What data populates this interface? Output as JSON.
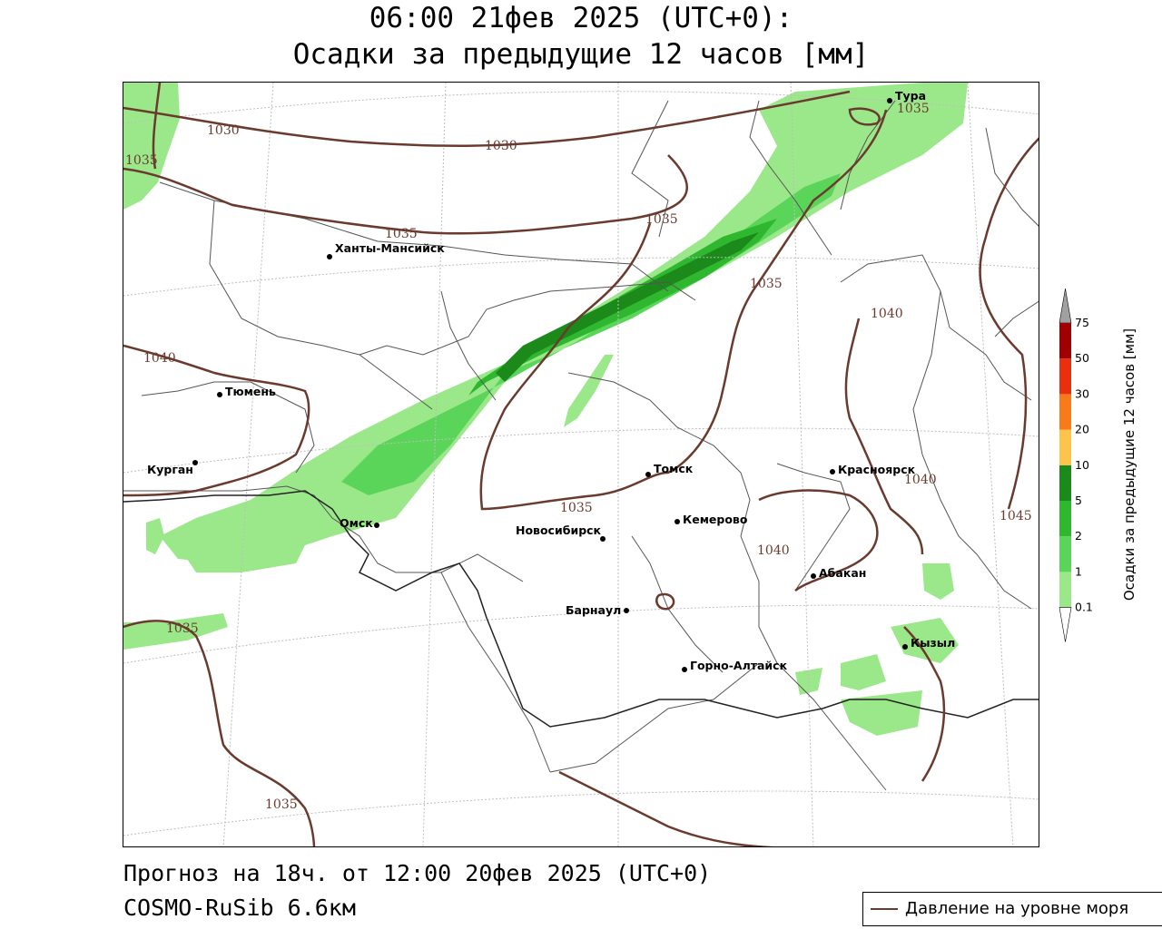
{
  "title": {
    "line1": "06:00 21фев 2025 (UTC+0):",
    "line2": "Осадки за предыдущие 12 часов [мм]"
  },
  "footer": {
    "forecast": "Прогноз на 18ч. от 12:00 20фев 2025 (UTC+0)",
    "model": "COSMO-RuSib 6.6км"
  },
  "legend": {
    "pressure_label": "Давление на уровне моря",
    "line_color": "#6b3a2e"
  },
  "colorbar": {
    "title": "Осадки за предыдущие 12 часов [мм]",
    "ticks": [
      "0.1",
      "1",
      "2",
      "5",
      "10",
      "20",
      "30",
      "50",
      "75"
    ],
    "colors": [
      "#9be88a",
      "#5ad55a",
      "#2fb82f",
      "#1b8a1b",
      "#fcc44a",
      "#f97a1a",
      "#e83010",
      "#a00000"
    ],
    "over_color": "#a0a0a0",
    "under_color": "#ffffff"
  },
  "map": {
    "cities": [
      {
        "name": "Тура"
      },
      {
        "name": "Ханты-Мансийск"
      },
      {
        "name": "Тюмень"
      },
      {
        "name": "Курган"
      },
      {
        "name": "Омск"
      },
      {
        "name": "Томск"
      },
      {
        "name": "Кемерово"
      },
      {
        "name": "Новосибирск"
      },
      {
        "name": "Красноярск"
      },
      {
        "name": "Абакан"
      },
      {
        "name": "Барнаул"
      },
      {
        "name": "Кызыл"
      },
      {
        "name": "Горно-Алтайск"
      }
    ],
    "isobar_labels": [
      "1030",
      "1030",
      "1035",
      "1035",
      "1035",
      "1035",
      "1035",
      "1040",
      "1040",
      "1040",
      "1035",
      "1040",
      "1045",
      "1035",
      "1035"
    ]
  }
}
